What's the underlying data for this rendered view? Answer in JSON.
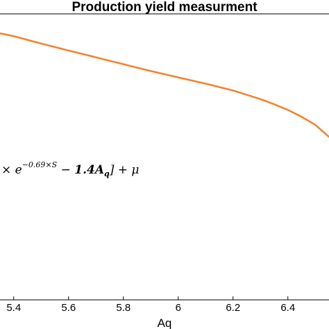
{
  "chart_data": {
    "type": "line",
    "title": "Production yield measurment",
    "xlabel": "Aq",
    "ylabel": "",
    "xlim": [
      5.35,
      6.55
    ],
    "x_ticks": [
      "5.4",
      "5.6",
      "5.8",
      "6",
      "6.2",
      "6.4"
    ],
    "x_tick_values": [
      5.4,
      5.6,
      5.8,
      6.0,
      6.2,
      6.4
    ],
    "grid": false,
    "series": [
      {
        "color": "#f0842f",
        "x": [
          5.35,
          5.4,
          5.5,
          5.6,
          5.7,
          5.8,
          5.9,
          6.0,
          6.1,
          6.2,
          6.3,
          6.35,
          6.4,
          6.45,
          6.5,
          6.55
        ],
        "y_rel": [
          0.932,
          0.922,
          0.896,
          0.872,
          0.848,
          0.824,
          0.8,
          0.778,
          0.756,
          0.732,
          0.702,
          0.684,
          0.664,
          0.64,
          0.612,
          0.57
        ]
      }
    ],
    "annotation": {
      "prefix": "× e",
      "exponent": "−0.69×S",
      "middle": " − ",
      "bold_term": "1.4A",
      "bold_sub": "q",
      "suffix": "] + μ"
    }
  }
}
